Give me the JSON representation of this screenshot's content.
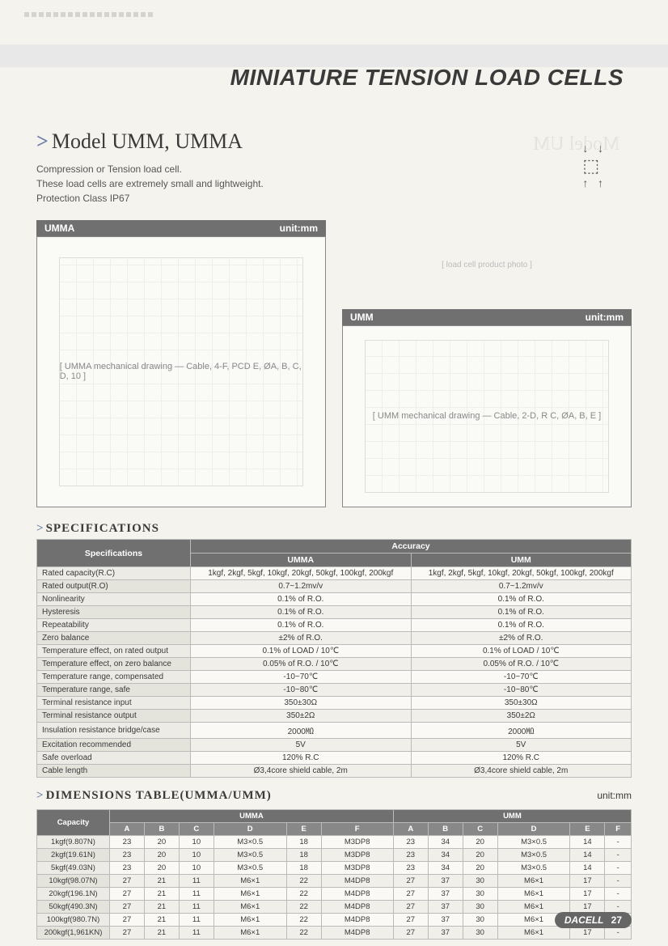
{
  "page": {
    "title": "MINIATURE TENSION LOAD CELLS",
    "model_heading": "Model UMM, UMMA",
    "intro_lines": [
      "Compression or Tension load cell.",
      "These load cells are extremely small and lightweight.",
      "Protection Class IP67"
    ],
    "ghost": "Model UM",
    "footer_brand": "DACELL",
    "footer_page": "27",
    "chevron": ">"
  },
  "diagrams": {
    "umma": {
      "label": "UMMA",
      "unit": "unit:mm",
      "placeholder": "[ UMMA mechanical drawing — Cable, 4-F, PCD E, ØA, B, C, D, 10 ]"
    },
    "umm": {
      "label": "UMM",
      "unit": "unit:mm",
      "placeholder": "[ UMM mechanical drawing — Cable, 2-D, R C, ØA, B, E ]"
    },
    "photo_placeholder": "[ load cell product photo ]"
  },
  "force_diagram": "↓   ↓\n▭\n↑   ↑",
  "specifications": {
    "title": "SPECIFICATIONS",
    "header_group": "Accuracy",
    "col_spec": "Specifications",
    "col_umma": "UMMA",
    "col_umm": "UMM",
    "rows": [
      {
        "label": "Rated capacity(R.C)",
        "umma": "1kgf, 2kgf, 5kgf, 10kgf, 20kgf, 50kgf, 100kgf, 200kgf",
        "umm": "1kgf, 2kgf, 5kgf, 10kgf, 20kgf, 50kgf, 100kgf, 200kgf"
      },
      {
        "label": "Rated output(R.O)",
        "umma": "0.7~1.2mv/v",
        "umm": "0.7~1.2mv/v"
      },
      {
        "label": "Nonlinearity",
        "umma": "0.1% of R.O.",
        "umm": "0.1% of R.O."
      },
      {
        "label": "Hysteresis",
        "umma": "0.1% of R.O.",
        "umm": "0.1% of R.O."
      },
      {
        "label": "Repeatability",
        "umma": "0.1% of R.O.",
        "umm": "0.1% of R.O."
      },
      {
        "label": "Zero balance",
        "umma": "±2% of R.O.",
        "umm": "±2% of R.O."
      },
      {
        "label": "Temperature effect, on rated output",
        "umma": "0.1% of LOAD / 10℃",
        "umm": "0.1% of LOAD / 10℃"
      },
      {
        "label": "Temperature effect, on zero balance",
        "umma": "0.05% of R.O. / 10℃",
        "umm": "0.05% of R.O. / 10℃"
      },
      {
        "label": "Temperature range, compensated",
        "umma": "-10~70℃",
        "umm": "-10~70℃"
      },
      {
        "label": "Temperature range, safe",
        "umma": "-10~80℃",
        "umm": "-10~80℃"
      },
      {
        "label": "Terminal resistance input",
        "umma": "350±30Ω",
        "umm": "350±30Ω"
      },
      {
        "label": "Terminal resistance output",
        "umma": "350±2Ω",
        "umm": "350±2Ω"
      },
      {
        "label": "Insulation resistance bridge/case",
        "umma": "2000㏁",
        "umm": "2000㏁"
      },
      {
        "label": "Excitation recommended",
        "umma": "5V",
        "umm": "5V"
      },
      {
        "label": "Safe overload",
        "umma": "120% R.C",
        "umm": "120% R.C"
      },
      {
        "label": "Cable length",
        "umma": "Ø3,4core shield cable, 2m",
        "umm": "Ø3,4core shield cable, 2m"
      }
    ]
  },
  "dimensions": {
    "title": "DIMENSIONS TABLE(UMMA/UMM)",
    "unit": "unit:mm",
    "col_capacity": "Capacity",
    "col_groups": [
      "UMMA",
      "UMM"
    ],
    "subcols": [
      "A",
      "B",
      "C",
      "D",
      "E",
      "F"
    ],
    "rows": [
      {
        "cap": "1kgf(9.807N)",
        "umma": [
          "23",
          "20",
          "10",
          "M3×0.5",
          "18",
          "M3DP8"
        ],
        "umm": [
          "23",
          "34",
          "20",
          "M3×0.5",
          "14",
          "-"
        ]
      },
      {
        "cap": "2kgf(19.61N)",
        "umma": [
          "23",
          "20",
          "10",
          "M3×0.5",
          "18",
          "M3DP8"
        ],
        "umm": [
          "23",
          "34",
          "20",
          "M3×0.5",
          "14",
          "-"
        ]
      },
      {
        "cap": "5kgf(49.03N)",
        "umma": [
          "23",
          "20",
          "10",
          "M3×0.5",
          "18",
          "M3DP8"
        ],
        "umm": [
          "23",
          "34",
          "20",
          "M3×0.5",
          "14",
          "-"
        ]
      },
      {
        "cap": "10kgf(98.07N)",
        "umma": [
          "27",
          "21",
          "11",
          "M6×1",
          "22",
          "M4DP8"
        ],
        "umm": [
          "27",
          "37",
          "30",
          "M6×1",
          "17",
          "-"
        ]
      },
      {
        "cap": "20kgf(196.1N)",
        "umma": [
          "27",
          "21",
          "11",
          "M6×1",
          "22",
          "M4DP8"
        ],
        "umm": [
          "27",
          "37",
          "30",
          "M6×1",
          "17",
          "-"
        ]
      },
      {
        "cap": "50kgf(490.3N)",
        "umma": [
          "27",
          "21",
          "11",
          "M6×1",
          "22",
          "M4DP8"
        ],
        "umm": [
          "27",
          "37",
          "30",
          "M6×1",
          "17",
          "-"
        ]
      },
      {
        "cap": "100kgf(980.7N)",
        "umma": [
          "27",
          "21",
          "11",
          "M6×1",
          "22",
          "M4DP8"
        ],
        "umm": [
          "27",
          "37",
          "30",
          "M6×1",
          "17",
          "-"
        ]
      },
      {
        "cap": "200kgf(1,961KN)",
        "umma": [
          "27",
          "21",
          "11",
          "M6×1",
          "22",
          "M4DP8"
        ],
        "umm": [
          "27",
          "37",
          "30",
          "M6×1",
          "17",
          "-"
        ]
      }
    ]
  },
  "colors": {
    "header_gray": "#707070",
    "row_alt": "#f0efe9",
    "chevron": "#6b7fa8"
  }
}
